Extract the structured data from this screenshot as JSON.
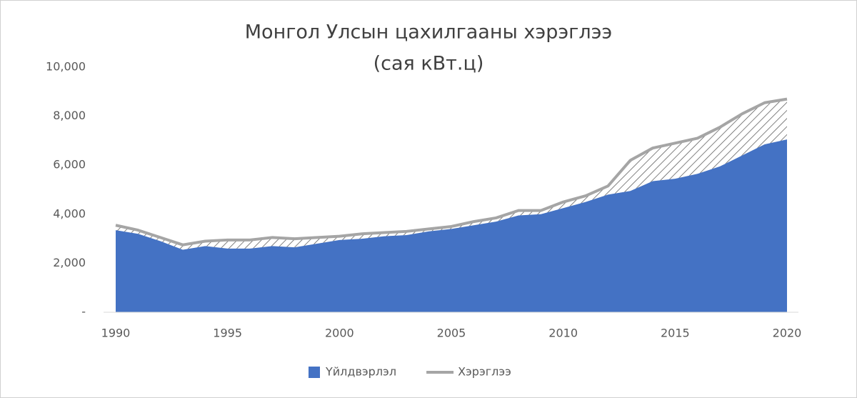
{
  "chart_data": {
    "type": "area",
    "title": "Монгол Улсын цахилгааны хэрэглээ",
    "subtitle": "(сая кВт.ц)",
    "x": [
      1990,
      1991,
      1992,
      1993,
      1994,
      1995,
      1996,
      1997,
      1998,
      1999,
      2000,
      2001,
      2002,
      2003,
      2004,
      2005,
      2006,
      2007,
      2008,
      2009,
      2010,
      2011,
      2012,
      2013,
      2014,
      2015,
      2016,
      2017,
      2018,
      2019,
      2020
    ],
    "series": [
      {
        "name": "Үйлдвэрлэл",
        "color": "#4472c4",
        "mark": "area",
        "values": [
          3350,
          3200,
          2900,
          2550,
          2700,
          2600,
          2600,
          2700,
          2650,
          2800,
          2950,
          3000,
          3100,
          3150,
          3300,
          3400,
          3550,
          3700,
          3950,
          4000,
          4250,
          4500,
          4800,
          4950,
          5350,
          5450,
          5650,
          5950,
          6400,
          6850,
          7050
        ]
      },
      {
        "name": "Хэрэглээ",
        "color": "#a5a5a5",
        "mark": "line",
        "values": [
          3550,
          3350,
          3050,
          2750,
          2900,
          2950,
          2950,
          3050,
          3000,
          3050,
          3100,
          3200,
          3250,
          3300,
          3400,
          3500,
          3700,
          3850,
          4150,
          4150,
          4500,
          4750,
          5150,
          6200,
          6700,
          6900,
          7100,
          7550,
          8100,
          8550,
          8700
        ]
      }
    ],
    "xlim": [
      1990,
      2020
    ],
    "xticks": [
      1990,
      1995,
      2000,
      2005,
      2010,
      2015,
      2020
    ],
    "ylim": [
      0,
      10000
    ],
    "yticks": [
      {
        "value": 0,
        "label": "-"
      },
      {
        "value": 2000,
        "label": "2,000"
      },
      {
        "value": 4000,
        "label": "4,000"
      },
      {
        "value": 6000,
        "label": "6,000"
      },
      {
        "value": 8000,
        "label": "8,000"
      },
      {
        "value": 10000,
        "label": "10,000"
      }
    ],
    "legend": "bottom"
  }
}
